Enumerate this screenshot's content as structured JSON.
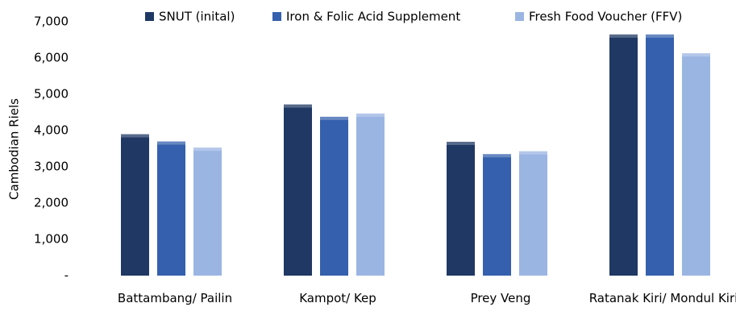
{
  "chart_data": {
    "type": "bar",
    "y_axis_label": "Cambodian Riels",
    "categories": [
      "Battambang/ Pailin",
      "Kampot/ Kep",
      "Prey Veng",
      "Ratanak Kiri/ Mondul Kiri"
    ],
    "series": [
      {
        "name": "SNUT (inital)",
        "color": "#1f3864",
        "values": [
          3900,
          4720,
          3690,
          6650
        ]
      },
      {
        "name": "Iron & Folic Acid Supplement",
        "color": "#3560ad",
        "values": [
          3700,
          4380,
          3350,
          6650
        ]
      },
      {
        "name": "Fresh Food Voucher (FFV)",
        "color": "#9bb5e3",
        "values": [
          3530,
          4470,
          3430,
          6130
        ]
      }
    ],
    "ylim": [
      0,
      7000
    ],
    "yticks": [
      {
        "value": 0,
        "label": "-"
      },
      {
        "value": 1000,
        "label": "1,000"
      },
      {
        "value": 2000,
        "label": "2,000"
      },
      {
        "value": 3000,
        "label": "3,000"
      },
      {
        "value": 4000,
        "label": "4,000"
      },
      {
        "value": 5000,
        "label": "5,000"
      },
      {
        "value": 6000,
        "label": "6,000"
      },
      {
        "value": 7000,
        "label": "7,000"
      }
    ],
    "legend": "top"
  }
}
